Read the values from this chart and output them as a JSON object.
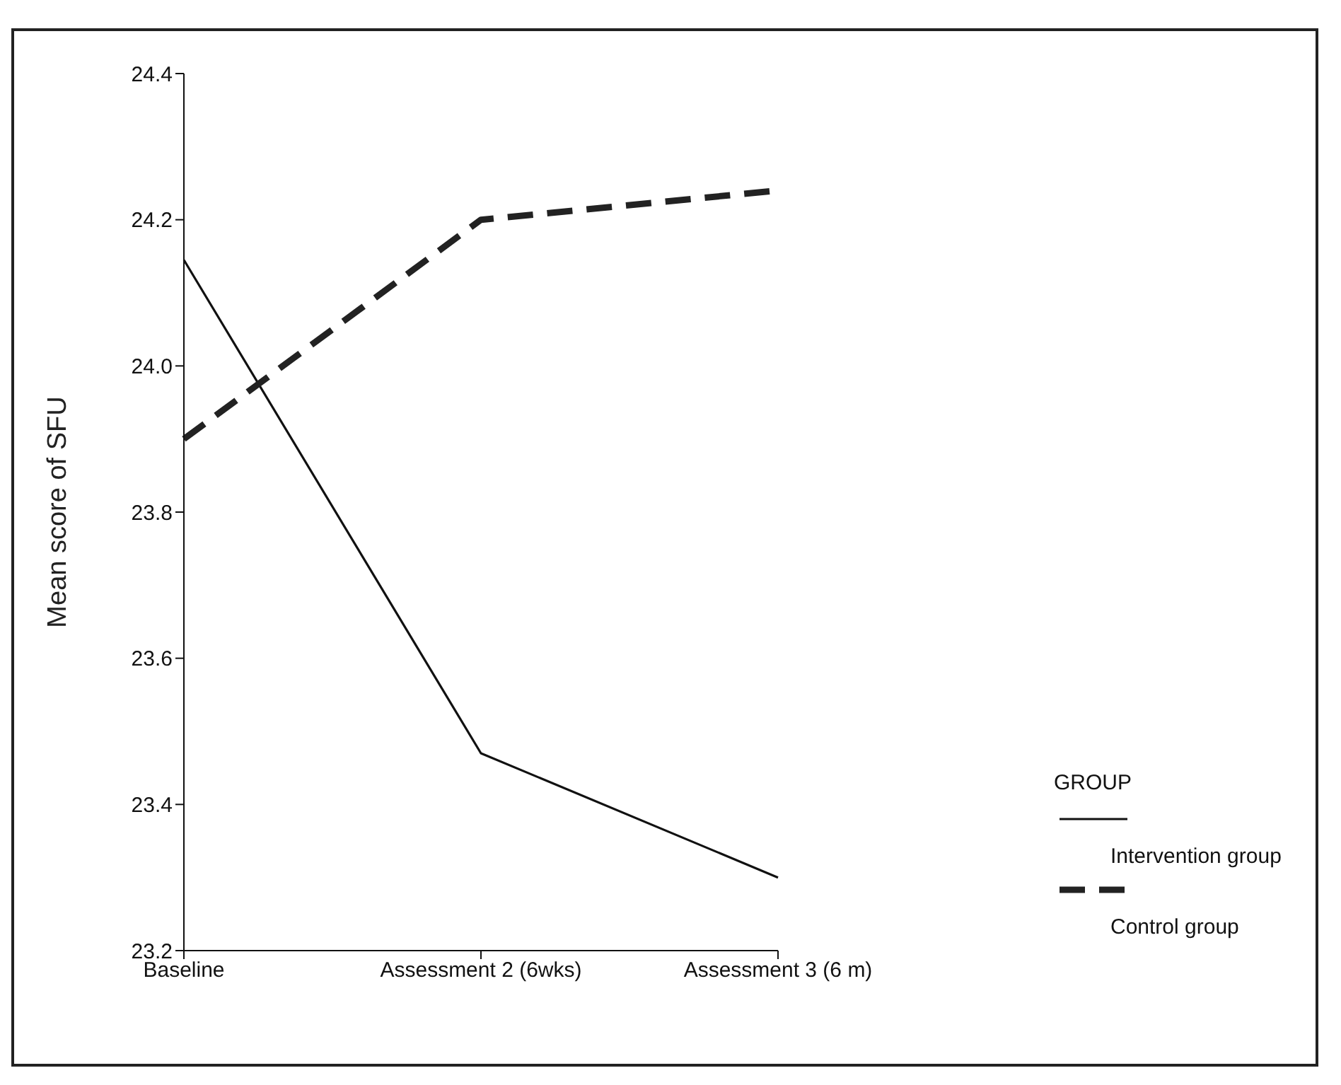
{
  "chart_data": {
    "type": "line",
    "ylabel": "Mean score of SFU",
    "legend_title": "GROUP",
    "categories": [
      "Baseline",
      "Assessment 2 (6wks)",
      "Assessment 3 (6 m)"
    ],
    "series": [
      {
        "name": "Intervention group",
        "color": "#111111",
        "values": [
          24.145,
          23.47,
          23.3
        ],
        "line_style": "solid"
      },
      {
        "name": "Control group",
        "color": "#222222",
        "values": [
          23.9,
          24.2,
          24.24
        ],
        "line_style": "dashed"
      }
    ],
    "ylim": [
      23.2,
      24.4
    ],
    "yticks": [
      23.2,
      23.4,
      23.6,
      23.8,
      {
        "value": 24.0,
        "label": "24.0"
      },
      24.2,
      24.4
    ],
    "grid": false,
    "legend": "bottom right",
    "marker": "none"
  }
}
